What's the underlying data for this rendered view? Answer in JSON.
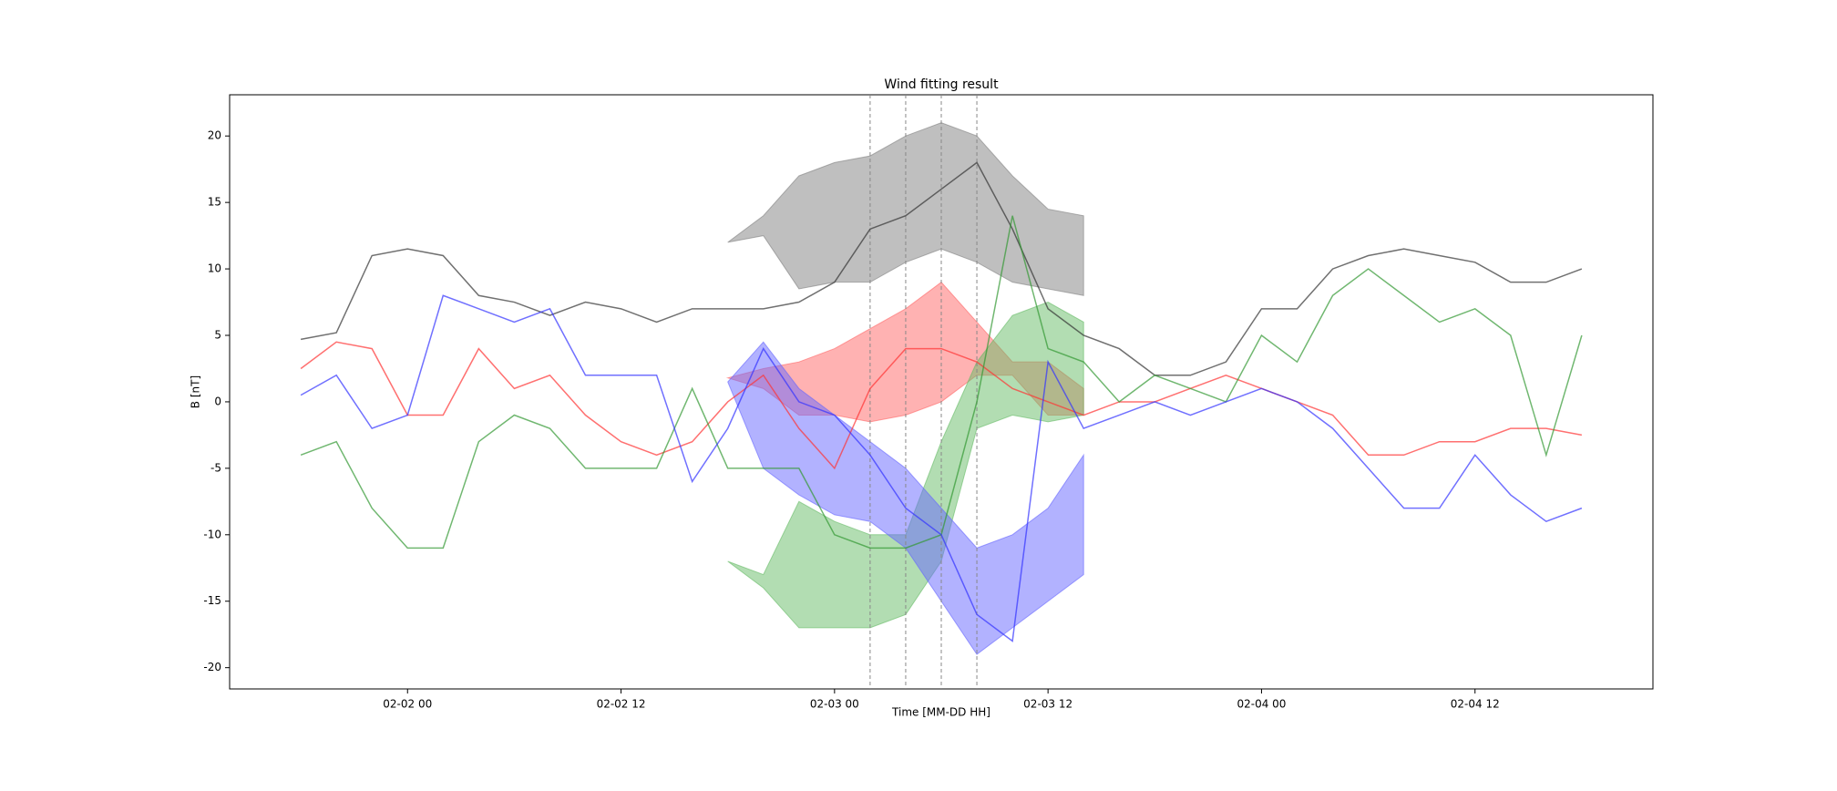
{
  "chart_data": {
    "type": "line",
    "title": "Wind fitting result",
    "xlabel": "Time [MM-DD HH]",
    "ylabel": "B [nT]",
    "x": [
      "02-01 18",
      "02-01 20",
      "02-01 22",
      "02-02 00",
      "02-02 02",
      "02-02 04",
      "02-02 06",
      "02-02 08",
      "02-02 10",
      "02-02 12",
      "02-02 14",
      "02-02 16",
      "02-02 18",
      "02-02 20",
      "02-02 22",
      "02-03 00",
      "02-03 02",
      "02-03 04",
      "02-03 06",
      "02-03 08",
      "02-03 10",
      "02-03 12",
      "02-03 14",
      "02-03 16",
      "02-03 18",
      "02-03 20",
      "02-03 22",
      "02-04 00",
      "02-04 02",
      "02-04 04",
      "02-04 06",
      "02-04 08",
      "02-04 10",
      "02-04 12",
      "02-04 14",
      "02-04 16",
      "02-04 18"
    ],
    "series": [
      {
        "color": "#333333",
        "values": [
          4.7,
          5.2,
          11,
          11.5,
          11,
          8,
          7.5,
          6.5,
          7.5,
          7,
          6,
          7,
          7,
          7,
          7.5,
          9,
          13,
          14,
          16,
          18,
          13,
          7,
          5,
          4,
          2,
          2,
          3,
          7,
          7,
          10,
          11,
          11.5,
          11,
          10.5,
          9,
          9,
          10
        ]
      },
      {
        "color": "#ff3333",
        "values": [
          2.5,
          4.5,
          4,
          -1,
          -1,
          4,
          1,
          2,
          -1,
          -3,
          -4,
          -3,
          0,
          2,
          -2,
          -5,
          1,
          4,
          4,
          3,
          1,
          0,
          -1,
          0,
          0,
          1,
          2,
          1,
          0,
          -1,
          -4,
          -4,
          -3,
          -3,
          -2,
          -2,
          -2.5
        ]
      },
      {
        "color": "#339933",
        "values": [
          -4,
          -3,
          -8,
          -11,
          -11,
          -3,
          -1,
          -2,
          -5,
          -5,
          -5,
          1,
          -5,
          -5,
          -5,
          -10,
          -11,
          -11,
          -10,
          0,
          14,
          4,
          3,
          0,
          2,
          1,
          0,
          5,
          3,
          8,
          10,
          8,
          6,
          7,
          5,
          -4,
          5
        ]
      },
      {
        "color": "#3333ff",
        "values": [
          0.5,
          2,
          -2,
          -1,
          8,
          7,
          6,
          7,
          2,
          2,
          2,
          -6,
          -2,
          4,
          0,
          -1,
          -4,
          -8,
          -10,
          -16,
          -18,
          3,
          -2,
          -1,
          0,
          -1,
          0,
          1,
          0,
          -2,
          -5,
          -8,
          -8,
          -4,
          -7,
          -9,
          -8
        ]
      }
    ],
    "bands": [
      {
        "color": "#808080",
        "x": [
          "02-02 18",
          "02-02 20",
          "02-02 22",
          "02-03 00",
          "02-03 02",
          "02-03 04",
          "02-03 06",
          "02-03 08",
          "02-03 10",
          "02-03 12",
          "02-03 14"
        ],
        "lower": [
          12,
          12.5,
          8.5,
          9,
          9,
          10.5,
          11.5,
          10.5,
          9,
          8.5,
          8
        ],
        "upper": [
          12,
          14,
          17,
          18,
          18.5,
          20,
          21,
          20,
          17,
          14.5,
          14
        ]
      },
      {
        "color": "#ff6666",
        "x": [
          "02-02 18",
          "02-02 20",
          "02-02 22",
          "02-03 00",
          "02-03 02",
          "02-03 04",
          "02-03 06",
          "02-03 08",
          "02-03 10",
          "02-03 12",
          "02-03 14"
        ],
        "lower": [
          1.8,
          1,
          -1,
          -1,
          -1.5,
          -1,
          0,
          2,
          2,
          -1,
          -1
        ],
        "upper": [
          1.8,
          2.5,
          3,
          4,
          5.5,
          7,
          9,
          6,
          3,
          3,
          1
        ]
      },
      {
        "color": "#66bb66",
        "x": [
          "02-02 18",
          "02-02 20",
          "02-02 22",
          "02-03 00",
          "02-03 02",
          "02-03 04",
          "02-03 06",
          "02-03 08",
          "02-03 10",
          "02-03 12",
          "02-03 14"
        ],
        "lower": [
          -12,
          -14,
          -17,
          -17,
          -17,
          -16,
          -12,
          -2,
          -1,
          -1.5,
          -1
        ],
        "upper": [
          -12,
          -13,
          -7.5,
          -9,
          -10,
          -10,
          -3,
          3,
          6.5,
          7.5,
          6
        ]
      },
      {
        "color": "#6666ff",
        "x": [
          "02-02 18",
          "02-02 20",
          "02-02 22",
          "02-03 00",
          "02-03 02",
          "02-03 04",
          "02-03 06",
          "02-03 08",
          "02-03 10",
          "02-03 12",
          "02-03 14"
        ],
        "lower": [
          1.5,
          -5,
          -7,
          -8.5,
          -9,
          -11,
          -15,
          -19,
          -17,
          -15,
          -13
        ],
        "upper": [
          1.5,
          4.5,
          1,
          -1,
          -3,
          -5,
          -8,
          -11,
          -10,
          -8,
          -4
        ]
      }
    ],
    "vlines": [
      "02-03 02",
      "02-03 04",
      "02-03 06",
      "02-03 08"
    ],
    "xlim": [
      "02-01 14",
      "02-04 22"
    ],
    "xticks": [
      "02-02 00",
      "02-02 12",
      "02-03 00",
      "02-03 12",
      "02-04 00",
      "02-04 12"
    ],
    "ylim": [
      -21.6,
      23.1
    ],
    "yticks": [
      -20,
      -15,
      -10,
      -5,
      0,
      5,
      10,
      15,
      20
    ]
  }
}
